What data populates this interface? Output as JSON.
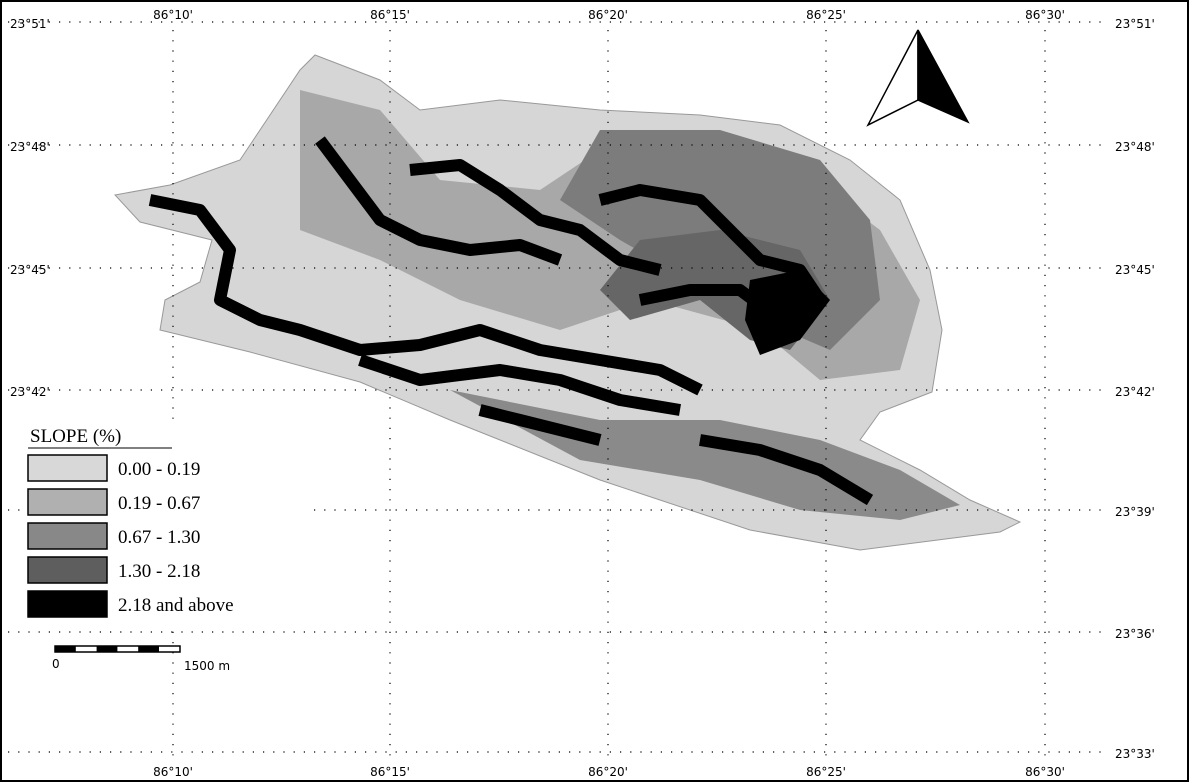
{
  "map": {
    "grid_labels": {
      "top": [
        "86°10'",
        "86°15'",
        "86°20'",
        "86°25'",
        "86°30'"
      ],
      "bottom": [
        "86°10'",
        "86°15'",
        "86°20'",
        "86°25'",
        "86°30'"
      ],
      "left": [
        "23°51'",
        "23°48'",
        "23°45'",
        "23°42'"
      ],
      "right": [
        "23°51'",
        "23°48'",
        "23°45'",
        "23°42'",
        "23°39'",
        "23°36'",
        "23°33'"
      ]
    },
    "legend": {
      "title": "SLOPE (%)",
      "items": [
        {
          "label": "0.00  - 0.19",
          "color": "#d8d8d8"
        },
        {
          "label": "0.19  - 0.67",
          "color": "#b0b0b0"
        },
        {
          "label": "0.67  - 1.30",
          "color": "#888888"
        },
        {
          "label": "1.30  - 2.18",
          "color": "#5e5e5e"
        },
        {
          "label": "2.18  and above",
          "color": "#000000"
        }
      ]
    },
    "scale_bar": {
      "start": "0",
      "end": "1500 m"
    }
  }
}
